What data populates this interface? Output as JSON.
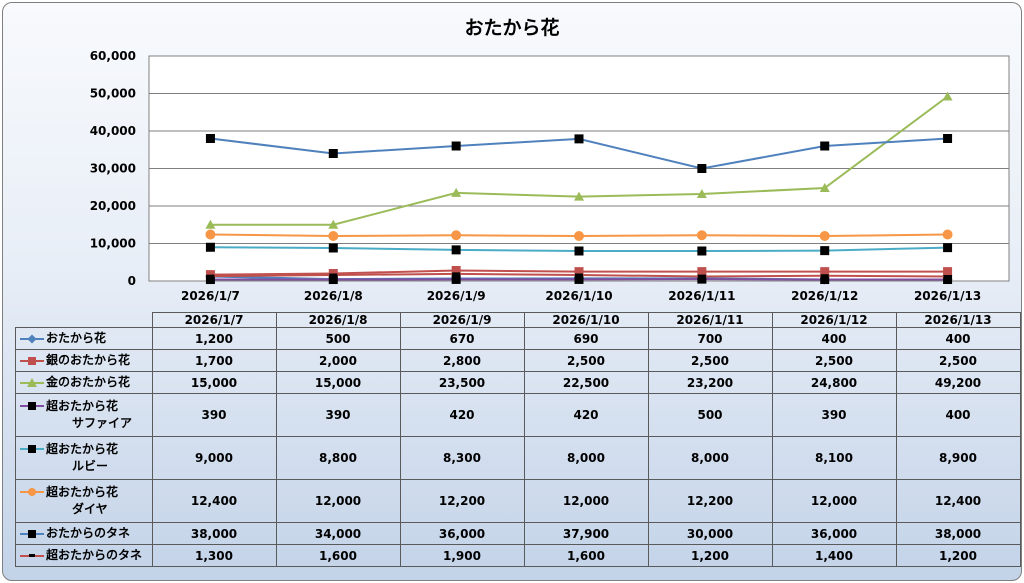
{
  "chart_data": {
    "type": "line",
    "title": "おたから花",
    "categories": [
      "2026/1/7",
      "2026/1/8",
      "2026/1/9",
      "2026/1/10",
      "2026/1/11",
      "2026/1/12",
      "2026/1/13"
    ],
    "yticks": [
      "0",
      "10,000",
      "20,000",
      "30,000",
      "40,000",
      "50,000",
      "60,000"
    ],
    "ylim": [
      0,
      60000
    ],
    "grid": true,
    "legend": "data-table",
    "series": [
      {
        "name": "おたから花",
        "label_lines": [
          "おたから花"
        ],
        "color": "#4f81bd",
        "marker": "diamond",
        "values": [
          1200,
          500,
          670,
          690,
          700,
          400,
          400
        ],
        "display": [
          "1,200",
          "500",
          "670",
          "690",
          "700",
          "400",
          "400"
        ]
      },
      {
        "name": "銀のおたから花",
        "label_lines": [
          "銀のおたから花"
        ],
        "color": "#c0504d",
        "marker": "square",
        "values": [
          1700,
          2000,
          2800,
          2500,
          2500,
          2500,
          2500
        ],
        "display": [
          "1,700",
          "2,000",
          "2,800",
          "2,500",
          "2,500",
          "2,500",
          "2,500"
        ]
      },
      {
        "name": "金のおたから花",
        "label_lines": [
          "金のおたから花"
        ],
        "color": "#9bbb59",
        "marker": "triangle",
        "values": [
          15000,
          15000,
          23500,
          22500,
          23200,
          24800,
          49200
        ],
        "display": [
          "15,000",
          "15,000",
          "23,500",
          "22,500",
          "23,200",
          "24,800",
          "49,200"
        ]
      },
      {
        "name": "超おたから花サファイア",
        "label_lines": [
          "超おたから花",
          "サファイア"
        ],
        "color": "#7f4f9f",
        "marker": "square-black",
        "values": [
          390,
          390,
          420,
          420,
          500,
          390,
          400
        ],
        "display": [
          "390",
          "390",
          "420",
          "420",
          "500",
          "390",
          "400"
        ]
      },
      {
        "name": "超おたから花ルビー",
        "label_lines": [
          "超おたから花",
          "ルビー"
        ],
        "color": "#4bacc6",
        "marker": "square-black",
        "values": [
          9000,
          8800,
          8300,
          8000,
          8000,
          8100,
          8900
        ],
        "display": [
          "9,000",
          "8,800",
          "8,300",
          "8,000",
          "8,000",
          "8,100",
          "8,900"
        ]
      },
      {
        "name": "超おたから花ダイヤ",
        "label_lines": [
          "超おたから花",
          "ダイヤ"
        ],
        "color": "#f79646",
        "marker": "circle",
        "values": [
          12400,
          12000,
          12200,
          12000,
          12200,
          12000,
          12400
        ],
        "display": [
          "12,400",
          "12,000",
          "12,200",
          "12,000",
          "12,200",
          "12,000",
          "12,400"
        ]
      },
      {
        "name": "おたからのタネ",
        "label_lines": [
          "おたからのタネ"
        ],
        "color": "#4f81bd",
        "marker": "square-black",
        "values": [
          38000,
          34000,
          36000,
          37900,
          30000,
          36000,
          38000
        ],
        "display": [
          "38,000",
          "34,000",
          "36,000",
          "37,900",
          "30,000",
          "36,000",
          "38,000"
        ]
      },
      {
        "name": "超おたからのタネ",
        "label_lines": [
          "超おたからのタネ"
        ],
        "color": "#c0504d",
        "marker": "dash",
        "values": [
          1300,
          1600,
          1900,
          1600,
          1200,
          1400,
          1200
        ],
        "display": [
          "1,300",
          "1,600",
          "1,900",
          "1,600",
          "1,200",
          "1,400",
          "1,200"
        ]
      }
    ]
  }
}
